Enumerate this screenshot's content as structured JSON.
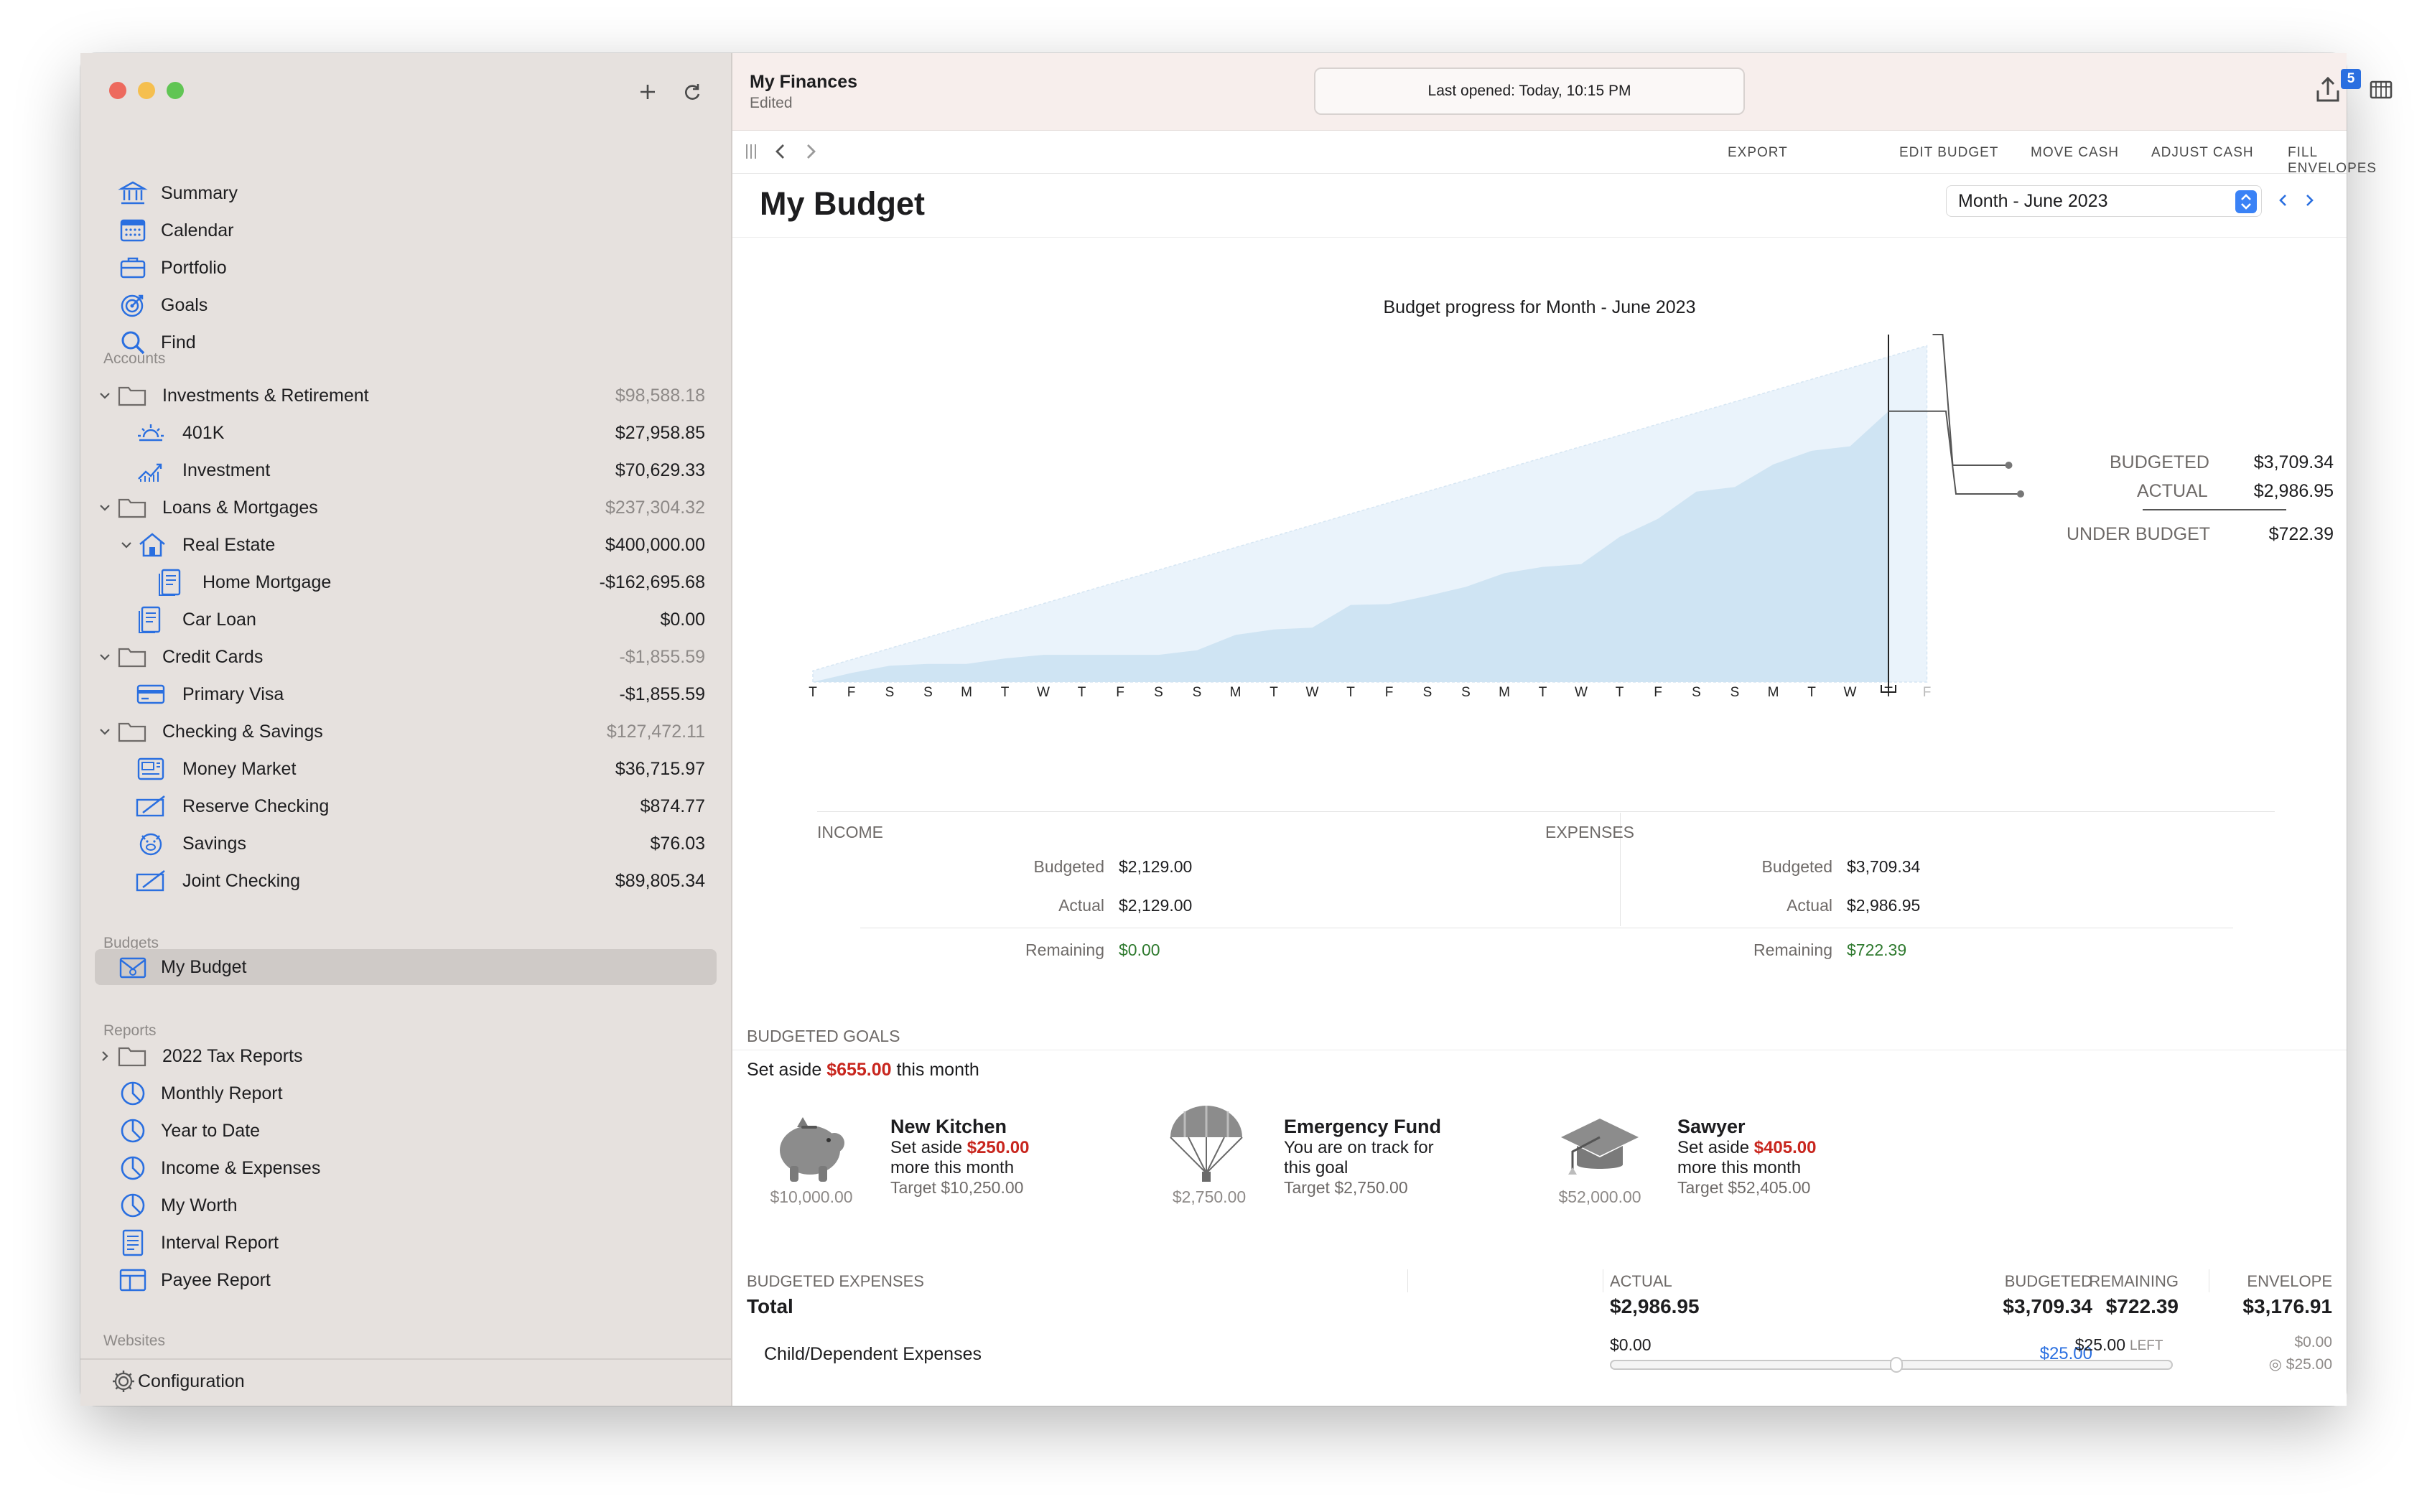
{
  "app": {
    "doc_title": "My Finances",
    "doc_status": "Edited",
    "last_opened": "Last opened: Today, 10:15 PM",
    "badge": "5"
  },
  "sidebar": {
    "nav": [
      "Summary",
      "Calendar",
      "Portfolio",
      "Goals",
      "Find"
    ],
    "accounts_label": "Accounts",
    "accounts": [
      {
        "name": "Investments & Retirement",
        "amount": "$98,588.18"
      },
      {
        "name": "401K",
        "amount": "$27,958.85"
      },
      {
        "name": "Investment",
        "amount": "$70,629.33"
      },
      {
        "name": "Loans & Mortgages",
        "amount": "$237,304.32"
      },
      {
        "name": "Real Estate",
        "amount": "$400,000.00"
      },
      {
        "name": "Home Mortgage",
        "amount": "-$162,695.68"
      },
      {
        "name": "Car Loan",
        "amount": "$0.00"
      },
      {
        "name": "Credit Cards",
        "amount": "-$1,855.59"
      },
      {
        "name": "Primary Visa",
        "amount": "-$1,855.59"
      },
      {
        "name": "Checking & Savings",
        "amount": "$127,472.11"
      },
      {
        "name": "Money Market",
        "amount": "$36,715.97"
      },
      {
        "name": "Reserve Checking",
        "amount": "$874.77"
      },
      {
        "name": "Savings",
        "amount": "$76.03"
      },
      {
        "name": "Joint Checking",
        "amount": "$89,805.34"
      }
    ],
    "budgets_label": "Budgets",
    "budgets": [
      "My Budget"
    ],
    "reports_label": "Reports",
    "reports": [
      "2022 Tax Reports",
      "Monthly Report",
      "Year to Date",
      "Income & Expenses",
      "My Worth",
      "Interval Report",
      "Payee Report"
    ],
    "websites_label": "Websites",
    "configuration": "Configuration"
  },
  "toolbar": {
    "export": "EXPORT",
    "edit_budget": "EDIT BUDGET",
    "move_cash": "MOVE CASH",
    "adjust_cash": "ADJUST CASH",
    "fill_envelopes": "FILL ENVELOPES"
  },
  "page": {
    "title": "My Budget",
    "period": "Month - June 2023"
  },
  "chart_data": {
    "type": "area",
    "title": "Budget progress for Month - June 2023",
    "x": [
      "T",
      "F",
      "S",
      "S",
      "M",
      "T",
      "W",
      "T",
      "F",
      "S",
      "S",
      "M",
      "T",
      "W",
      "T",
      "F",
      "S",
      "S",
      "M",
      "T",
      "W",
      "T",
      "F",
      "S",
      "S",
      "M",
      "T",
      "W",
      "T",
      "F"
    ],
    "series": [
      {
        "name": "BUDGETED",
        "values": [
          124,
          247,
          371,
          495,
          618,
          742,
          865,
          989,
          1113,
          1236,
          1360,
          1484,
          1607,
          1731,
          1855,
          1978,
          2102,
          2226,
          2349,
          2473,
          2597,
          2720,
          2844,
          2968,
          3091,
          3215,
          3339,
          3462,
          3586,
          3709.34
        ]
      },
      {
        "name": "ACTUAL",
        "values": [
          0,
          100,
          180,
          200,
          200,
          260,
          300,
          300,
          300,
          300,
          350,
          520,
          580,
          600,
          850,
          860,
          950,
          1050,
          1200,
          1270,
          1300,
          1600,
          1800,
          2100,
          2150,
          2400,
          2550,
          2600,
          2986.95,
          2986.95
        ]
      }
    ],
    "budgeted": "$3,709.34",
    "actual": "$2,986.95",
    "under_budget_label": "UNDER BUDGET",
    "under_budget": "$722.39",
    "budgeted_label": "BUDGETED",
    "actual_label": "ACTUAL",
    "ylim": [
      0,
      3800
    ],
    "legend": "right",
    "colors": {
      "budgeted": "#eaf3fb",
      "actual": "#cfe4f3"
    }
  },
  "summary": {
    "income_label": "INCOME",
    "expenses_label": "EXPENSES",
    "budgeted_label": "Budgeted",
    "actual_label": "Actual",
    "remaining_label": "Remaining",
    "income": {
      "budgeted": "$2,129.00",
      "actual": "$2,129.00",
      "remaining": "$0.00"
    },
    "expenses": {
      "budgeted": "$3,709.34",
      "actual": "$2,986.95",
      "remaining": "$722.39"
    }
  },
  "goals": {
    "section_label": "BUDGETED GOALS",
    "set_aside_prefix": "Set aside ",
    "set_aside_amount": "$655.00",
    "set_aside_suffix": " this month",
    "items": [
      {
        "name": "New Kitchen",
        "line1_prefix": "Set aside ",
        "line1_amount": "$250.00",
        "line2": "more this month",
        "target": "Target $10,250.00",
        "saved": "$10,000.00",
        "icon": "piggy-bank-icon"
      },
      {
        "name": "Emergency Fund",
        "line1_prefix": "You are on track for",
        "line1_amount": "",
        "line2": "this goal",
        "target": "Target $2,750.00",
        "saved": "$2,750.00",
        "icon": "parachute-icon"
      },
      {
        "name": "Sawyer",
        "line1_prefix": "Set aside ",
        "line1_amount": "$405.00",
        "line2": "more this month",
        "target": "Target $52,405.00",
        "saved": "$52,000.00",
        "icon": "graduation-cap-icon"
      }
    ]
  },
  "budgeted_expenses": {
    "headers": {
      "name": "BUDGETED EXPENSES",
      "budgeted": "BUDGETED",
      "actual": "ACTUAL",
      "remaining": "REMAINING",
      "envelope": "ENVELOPE"
    },
    "total": {
      "label": "Total",
      "budgeted": "$3,709.34",
      "actual": "$2,986.95",
      "remaining": "$722.39",
      "envelope": "$3,176.91"
    },
    "rows": [
      {
        "name": "Child/Dependent Expenses",
        "budgeted": "$25.00",
        "actual": "$0.00",
        "remaining": "$25.00",
        "left": "LEFT",
        "envelope": "$0.00",
        "envelope_sub": "◎ $25.00"
      }
    ]
  }
}
